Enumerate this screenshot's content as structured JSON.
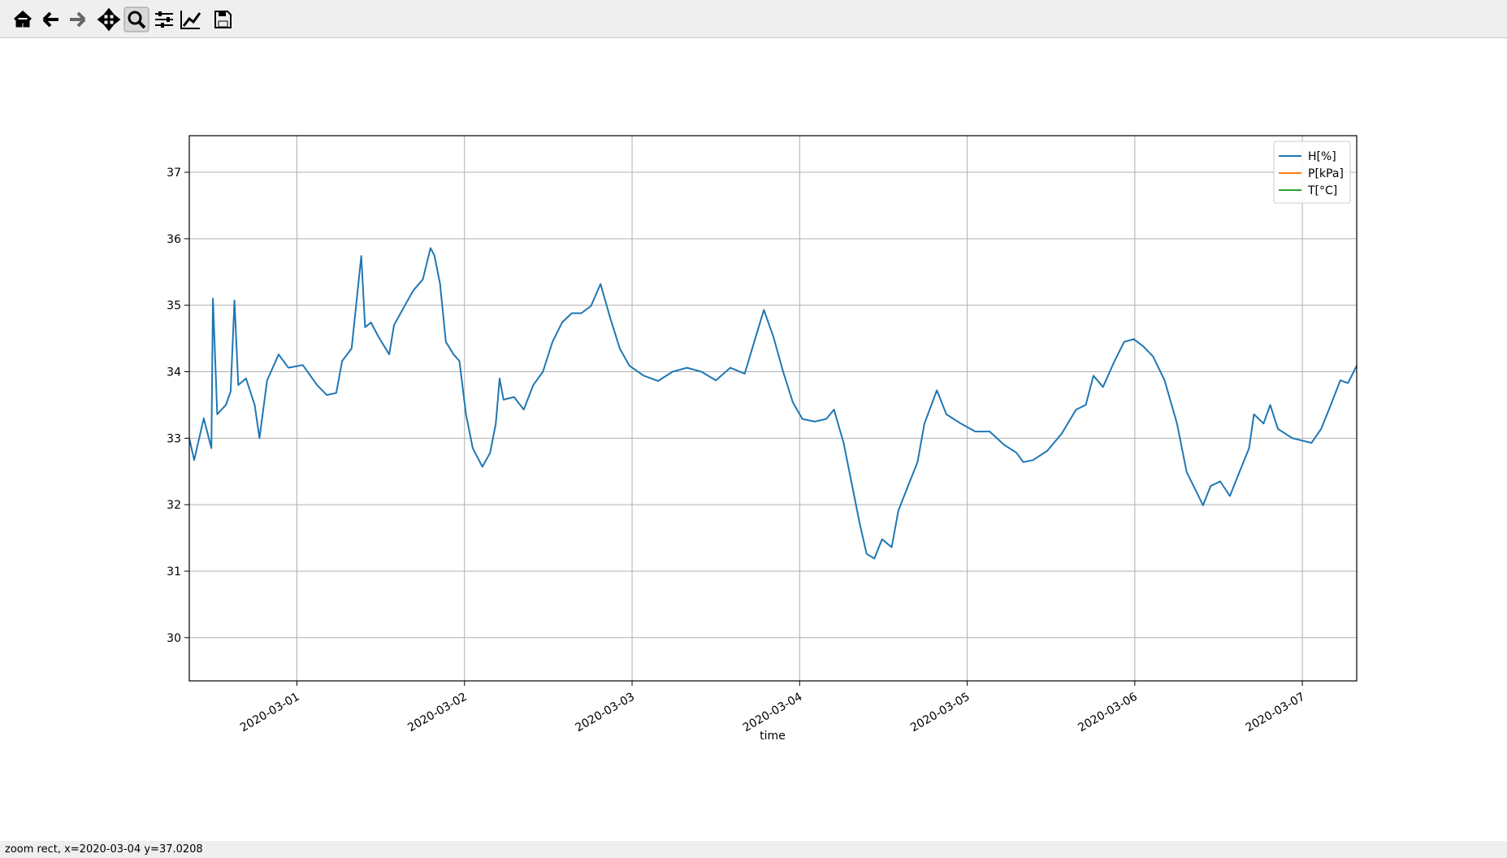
{
  "window": {
    "status": "zoom rect, x=2020-03-04 y=37.0208"
  },
  "chart_data": {
    "type": "line",
    "xlabel": "time",
    "x": [
      "2020-02-29T08:35",
      "2020-02-29T09:17",
      "2020-02-29T10:39",
      "2020-02-29T11:45",
      "2020-02-29T11:58",
      "2020-02-29T12:35",
      "2020-02-29T13:49",
      "2020-02-29T14:30",
      "2020-02-29T15:03",
      "2020-02-29T15:36",
      "2020-02-29T16:42",
      "2020-02-29T17:57",
      "2020-02-29T18:38",
      "2020-02-29T19:44",
      "2020-02-29T21:23",
      "2020-02-29T22:46",
      "2020-03-01T00:50",
      "2020-03-01T02:53",
      "2020-03-01T04:16",
      "2020-03-01T05:38",
      "2020-03-01T06:28",
      "2020-03-01T07:50",
      "2020-03-01T09:13",
      "2020-03-01T09:46",
      "2020-03-01T10:36",
      "2020-03-01T11:42",
      "2020-03-01T13:13",
      "2020-03-01T13:54",
      "2020-03-01T15:16",
      "2020-03-01T16:39",
      "2020-03-01T18:02",
      "2020-03-01T19:08",
      "2020-03-01T19:41",
      "2020-03-01T20:30",
      "2020-03-01T21:20",
      "2020-03-01T22:26",
      "2020-03-01T23:16",
      "2020-03-02T00:13",
      "2020-03-02T01:11",
      "2020-03-02T02:34",
      "2020-03-02T03:40",
      "2020-03-02T04:29",
      "2020-03-02T05:02",
      "2020-03-02T05:35",
      "2020-03-02T07:06",
      "2020-03-02T08:29",
      "2020-03-02T09:51",
      "2020-03-02T11:14",
      "2020-03-02T12:36",
      "2020-03-02T13:59",
      "2020-03-02T15:22",
      "2020-03-02T16:44",
      "2020-03-02T18:07",
      "2020-03-02T19:29",
      "2020-03-02T20:52",
      "2020-03-02T22:14",
      "2020-03-02T23:37",
      "2020-03-03T01:41",
      "2020-03-03T03:44",
      "2020-03-03T05:48",
      "2020-03-03T07:52",
      "2020-03-03T09:56",
      "2020-03-03T12:00",
      "2020-03-03T14:04",
      "2020-03-03T16:08",
      "2020-03-03T17:30",
      "2020-03-03T18:53",
      "2020-03-03T20:15",
      "2020-03-03T21:38",
      "2020-03-03T23:01",
      "2020-03-04T00:23",
      "2020-03-04T02:10",
      "2020-03-04T03:49",
      "2020-03-04T04:55",
      "2020-03-04T06:18",
      "2020-03-04T07:24",
      "2020-03-04T08:38",
      "2020-03-04T09:36",
      "2020-03-04T10:42",
      "2020-03-04T11:48",
      "2020-03-04T13:11",
      "2020-03-04T14:08",
      "2020-03-04T15:31",
      "2020-03-04T16:53",
      "2020-03-04T17:52",
      "2020-03-04T19:39",
      "2020-03-04T21:01",
      "2020-03-04T23:05",
      "2020-03-05T01:09",
      "2020-03-05T03:13",
      "2020-03-05T05:17",
      "2020-03-05T07:04",
      "2020-03-05T08:02",
      "2020-03-05T09:25",
      "2020-03-05T11:28",
      "2020-03-05T13:32",
      "2020-03-05T15:36",
      "2020-03-05T16:59",
      "2020-03-05T18:05",
      "2020-03-05T19:27",
      "2020-03-05T21:06",
      "2020-03-05T22:29",
      "2020-03-05T23:52",
      "2020-03-06T01:14",
      "2020-03-06T02:37",
      "2020-03-06T04:16",
      "2020-03-06T06:03",
      "2020-03-06T07:26",
      "2020-03-06T08:48",
      "2020-03-06T09:46",
      "2020-03-06T10:52",
      "2020-03-06T12:14",
      "2020-03-06T13:37",
      "2020-03-06T14:59",
      "2020-03-06T16:22",
      "2020-03-06T17:04",
      "2020-03-06T18:26",
      "2020-03-06T19:24",
      "2020-03-06T20:30",
      "2020-03-06T22:34",
      "2020-03-07T01:19",
      "2020-03-07T02:41",
      "2020-03-07T04:04",
      "2020-03-07T05:26",
      "2020-03-07T06:32",
      "2020-03-07T07:47"
    ],
    "series": [
      {
        "name": "H[%]",
        "color": "#1f77b4",
        "values": [
          33.0,
          32.67,
          33.3,
          32.85,
          35.1,
          33.36,
          33.5,
          33.7,
          35.07,
          33.8,
          33.9,
          33.5,
          33.0,
          33.87,
          34.26,
          34.06,
          34.1,
          33.8,
          33.65,
          33.68,
          34.16,
          34.35,
          35.74,
          34.67,
          34.74,
          34.52,
          34.26,
          34.7,
          34.96,
          35.22,
          35.39,
          35.86,
          35.75,
          35.32,
          34.45,
          34.26,
          34.16,
          33.36,
          32.85,
          32.57,
          32.78,
          33.22,
          33.9,
          33.58,
          33.62,
          33.43,
          33.8,
          34.0,
          34.45,
          34.74,
          34.88,
          34.88,
          34.99,
          35.32,
          34.81,
          34.35,
          34.09,
          33.94,
          33.86,
          34.0,
          34.06,
          34.0,
          33.87,
          34.06,
          33.97,
          34.45,
          34.93,
          34.52,
          34.0,
          33.54,
          33.29,
          33.25,
          33.29,
          33.43,
          32.93,
          32.35,
          31.7,
          31.26,
          31.19,
          31.48,
          31.36,
          31.91,
          32.28,
          32.64,
          33.22,
          33.72,
          33.36,
          33.22,
          33.1,
          33.1,
          32.9,
          32.78,
          32.64,
          32.67,
          32.81,
          33.07,
          33.43,
          33.5,
          33.94,
          33.77,
          34.16,
          34.45,
          34.49,
          34.38,
          34.23,
          33.87,
          33.22,
          32.49,
          32.2,
          31.99,
          32.28,
          32.35,
          32.13,
          32.49,
          32.85,
          33.36,
          33.22,
          33.5,
          33.14,
          33.0,
          32.93,
          33.14,
          33.5,
          33.87,
          33.83,
          34.09
        ]
      },
      {
        "name": "P[kPa]",
        "color": "#ff7f0e"
      },
      {
        "name": "T[°C]",
        "color": "#2ca02c"
      }
    ],
    "xlim": [
      "2020-02-29T08:35",
      "2020-03-07T07:47"
    ],
    "xticks": [
      "2020-03-01",
      "2020-03-02",
      "2020-03-03",
      "2020-03-04",
      "2020-03-05",
      "2020-03-06",
      "2020-03-07"
    ],
    "ylim": [
      29.35,
      37.55
    ],
    "yticks": [
      30,
      31,
      32,
      33,
      34,
      35,
      36,
      37
    ],
    "grid": true,
    "legend": "upper right"
  }
}
